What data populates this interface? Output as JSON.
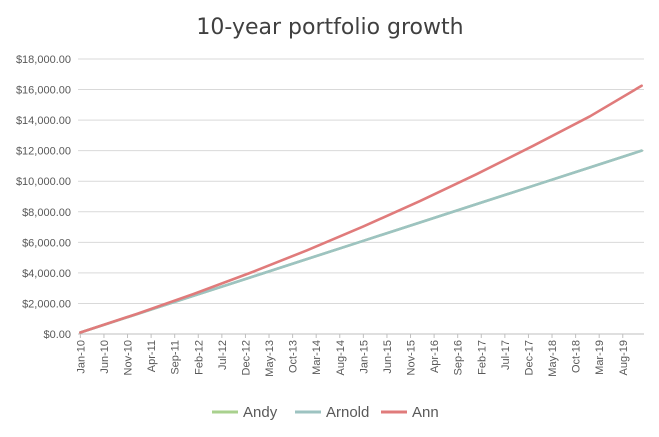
{
  "chart_data": {
    "type": "line",
    "title": "10-year portfolio growth",
    "xlabel": "",
    "ylabel": "",
    "x_range": [
      "Jan-10",
      "Dec-19"
    ],
    "x_tick_labels": [
      "Jan-10",
      "Jun-10",
      "Nov-10",
      "Apr-11",
      "Sep-11",
      "Feb-12",
      "Jul-12",
      "Dec-12",
      "May-13",
      "Oct-13",
      "Mar-14",
      "Aug-14",
      "Jan-15",
      "Jun-15",
      "Nov-15",
      "Apr-16",
      "Sep-16",
      "Feb-17",
      "Jul-17",
      "Dec-17",
      "May-18",
      "Oct-18",
      "Mar-19",
      "Aug-19"
    ],
    "y_tick_labels": [
      "$0.00",
      "$2,000.00",
      "$4,000.00",
      "$6,000.00",
      "$8,000.00",
      "$10,000.00",
      "$12,000.00",
      "$14,000.00",
      "$16,000.00",
      "$18,000.00"
    ],
    "ylim": [
      0,
      18000
    ],
    "grid": true,
    "legend_position": "bottom",
    "series": [
      {
        "name": "Andy",
        "color": "#a9d18e",
        "points": [
          [
            "Jan-10",
            100
          ],
          [
            "Jan-11",
            1300
          ],
          [
            "Jan-12",
            2500
          ],
          [
            "Jan-13",
            3700
          ],
          [
            "Jan-14",
            4900
          ],
          [
            "Jan-15",
            6100
          ],
          [
            "Jan-16",
            7300
          ],
          [
            "Jan-17",
            8500
          ],
          [
            "Jan-18",
            9700
          ],
          [
            "Jan-19",
            10900
          ],
          [
            "Dec-19",
            12000
          ]
        ]
      },
      {
        "name": "Arnold",
        "color": "#9dc3c1",
        "points": [
          [
            "Jan-10",
            100
          ],
          [
            "Jan-11",
            1300
          ],
          [
            "Jan-12",
            2500
          ],
          [
            "Jan-13",
            3700
          ],
          [
            "Jan-14",
            4900
          ],
          [
            "Jan-15",
            6100
          ],
          [
            "Jan-16",
            7300
          ],
          [
            "Jan-17",
            8500
          ],
          [
            "Jan-18",
            9700
          ],
          [
            "Jan-19",
            10900
          ],
          [
            "Dec-19",
            12000
          ]
        ]
      },
      {
        "name": "Ann",
        "color": "#e07b7b",
        "points": [
          [
            "Jan-10",
            100
          ],
          [
            "Jan-11",
            1320
          ],
          [
            "Jan-12",
            2620
          ],
          [
            "Jan-13",
            4000
          ],
          [
            "Jan-14",
            5470
          ],
          [
            "Jan-15",
            7040
          ],
          [
            "Jan-16",
            8700
          ],
          [
            "Jan-17",
            10460
          ],
          [
            "Jan-18",
            12320
          ],
          [
            "Jan-19",
            14240
          ],
          [
            "Dec-19",
            16250
          ]
        ]
      }
    ]
  }
}
